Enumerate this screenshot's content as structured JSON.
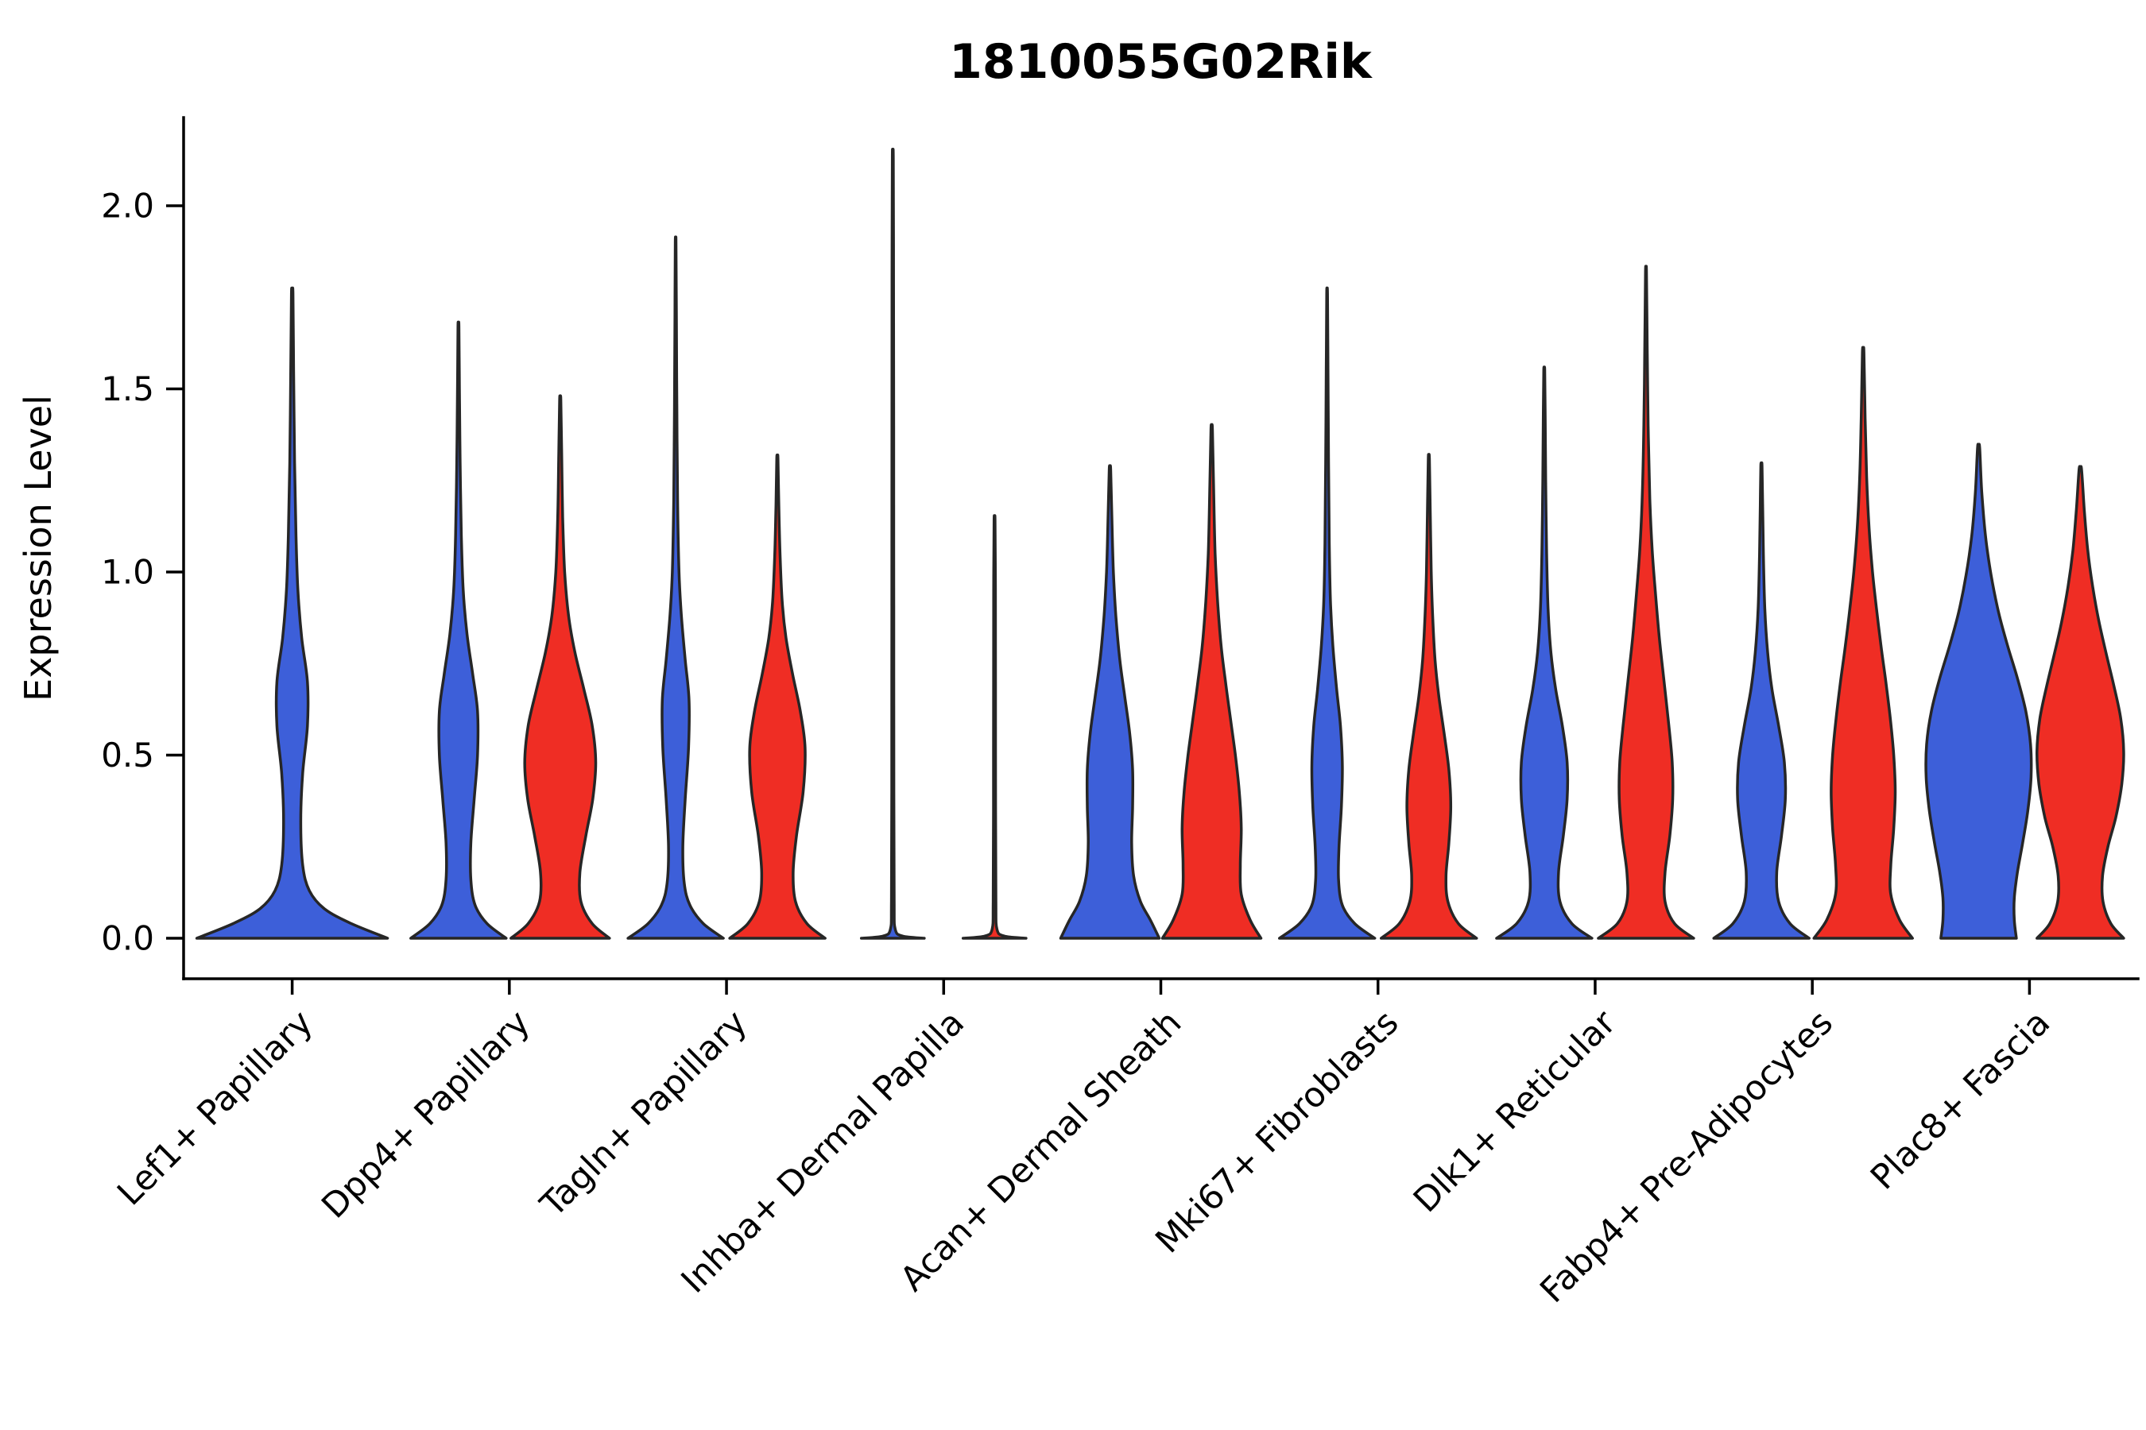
{
  "chart_data": {
    "type": "violin",
    "title": "1810055G02Rik",
    "xlabel": "",
    "ylabel": "Expression Level",
    "ylim": [
      -0.1,
      2.25
    ],
    "yticks": [
      0,
      0.5,
      1,
      1.5,
      2
    ],
    "ytick_labels": [
      "0.0",
      "0.5",
      "1.0",
      "1.5",
      "2.0"
    ],
    "grid": false,
    "legend": "none",
    "colors": {
      "blue": "#3D5FD9",
      "red": "#EF2D24",
      "outline": "#262626"
    },
    "categories": [
      "Lef1+ Papillary",
      "Dpp4+ Papillary",
      "Tagln+ Papillary",
      "Inhba+ Dermal Papilla",
      "Acan+ Dermal Sheath",
      "Mki67+ Fibroblasts",
      "Dlk1+ Reticular",
      "Fabp4+ Pre-Adipocytes",
      "Plac8+ Fascia"
    ],
    "series": [
      {
        "name": "blue",
        "color": "#3D5FD9",
        "max_expression": [
          1.76,
          1.67,
          1.9,
          2.13,
          1.28,
          1.76,
          1.55,
          1.29,
          1.34
        ]
      },
      {
        "name": "red",
        "color": "#EF2D24",
        "max_expression": [
          null,
          1.47,
          1.31,
          1.14,
          1.39,
          1.31,
          1.82,
          1.6,
          1.28
        ]
      }
    ],
    "violins": [
      {
        "category": 0,
        "color": "blue",
        "slot": "center",
        "max": 1.76,
        "half_width": 120,
        "profile": [
          [
            0,
            1.0
          ],
          [
            0.04,
            0.62
          ],
          [
            0.08,
            0.34
          ],
          [
            0.13,
            0.18
          ],
          [
            0.2,
            0.11
          ],
          [
            0.32,
            0.09
          ],
          [
            0.45,
            0.11
          ],
          [
            0.58,
            0.16
          ],
          [
            0.7,
            0.16
          ],
          [
            0.82,
            0.1
          ],
          [
            0.95,
            0.06
          ],
          [
            1.1,
            0.04
          ],
          [
            1.3,
            0.025
          ],
          [
            1.55,
            0.015
          ],
          [
            1.76,
            0.008
          ]
        ]
      },
      {
        "category": 1,
        "color": "blue",
        "slot": "left",
        "max": 1.67,
        "half_width": 60,
        "profile": [
          [
            0,
            1.0
          ],
          [
            0.04,
            0.6
          ],
          [
            0.09,
            0.35
          ],
          [
            0.16,
            0.26
          ],
          [
            0.26,
            0.26
          ],
          [
            0.38,
            0.33
          ],
          [
            0.5,
            0.4
          ],
          [
            0.62,
            0.4
          ],
          [
            0.72,
            0.3
          ],
          [
            0.83,
            0.18
          ],
          [
            0.95,
            0.1
          ],
          [
            1.1,
            0.06
          ],
          [
            1.3,
            0.035
          ],
          [
            1.5,
            0.02
          ],
          [
            1.67,
            0.01
          ]
        ]
      },
      {
        "category": 1,
        "color": "red",
        "slot": "right",
        "max": 1.47,
        "half_width": 62,
        "profile": [
          [
            0,
            1.0
          ],
          [
            0.04,
            0.65
          ],
          [
            0.1,
            0.42
          ],
          [
            0.18,
            0.4
          ],
          [
            0.28,
            0.52
          ],
          [
            0.38,
            0.66
          ],
          [
            0.48,
            0.72
          ],
          [
            0.58,
            0.65
          ],
          [
            0.68,
            0.48
          ],
          [
            0.78,
            0.3
          ],
          [
            0.88,
            0.17
          ],
          [
            1.0,
            0.09
          ],
          [
            1.15,
            0.05
          ],
          [
            1.32,
            0.03
          ],
          [
            1.47,
            0.012
          ]
        ]
      },
      {
        "category": 2,
        "color": "blue",
        "slot": "left",
        "max": 1.9,
        "half_width": 60,
        "profile": [
          [
            0,
            1.0
          ],
          [
            0.04,
            0.58
          ],
          [
            0.09,
            0.3
          ],
          [
            0.15,
            0.18
          ],
          [
            0.25,
            0.15
          ],
          [
            0.38,
            0.2
          ],
          [
            0.52,
            0.27
          ],
          [
            0.65,
            0.28
          ],
          [
            0.76,
            0.2
          ],
          [
            0.88,
            0.12
          ],
          [
            1.0,
            0.07
          ],
          [
            1.2,
            0.04
          ],
          [
            1.45,
            0.025
          ],
          [
            1.7,
            0.015
          ],
          [
            1.9,
            0.008
          ]
        ]
      },
      {
        "category": 2,
        "color": "red",
        "slot": "right",
        "max": 1.31,
        "half_width": 60,
        "profile": [
          [
            0,
            1.0
          ],
          [
            0.04,
            0.62
          ],
          [
            0.1,
            0.38
          ],
          [
            0.18,
            0.33
          ],
          [
            0.28,
            0.4
          ],
          [
            0.4,
            0.54
          ],
          [
            0.52,
            0.58
          ],
          [
            0.62,
            0.48
          ],
          [
            0.72,
            0.32
          ],
          [
            0.82,
            0.18
          ],
          [
            0.92,
            0.1
          ],
          [
            1.05,
            0.055
          ],
          [
            1.18,
            0.03
          ],
          [
            1.31,
            0.012
          ]
        ]
      },
      {
        "category": 3,
        "color": "blue",
        "slot": "left",
        "max": 2.13,
        "half_width": 60,
        "profile": [
          [
            0,
            0.66
          ],
          [
            0.006,
            0.2
          ],
          [
            0.025,
            0.05
          ],
          [
            0.1,
            0.028
          ],
          [
            0.4,
            0.022
          ],
          [
            0.9,
            0.02
          ],
          [
            1.4,
            0.018
          ],
          [
            1.8,
            0.016
          ],
          [
            2.13,
            0.01
          ]
        ]
      },
      {
        "category": 3,
        "color": "red",
        "slot": "right",
        "max": 1.14,
        "half_width": 60,
        "profile": [
          [
            0,
            0.66
          ],
          [
            0.006,
            0.2
          ],
          [
            0.025,
            0.05
          ],
          [
            0.1,
            0.028
          ],
          [
            0.35,
            0.022
          ],
          [
            0.7,
            0.02
          ],
          [
            0.95,
            0.018
          ],
          [
            1.14,
            0.01
          ]
        ]
      },
      {
        "category": 4,
        "color": "blue",
        "slot": "left",
        "max": 1.28,
        "half_width": 62,
        "profile": [
          [
            0,
            1.0
          ],
          [
            0.05,
            0.82
          ],
          [
            0.1,
            0.62
          ],
          [
            0.17,
            0.48
          ],
          [
            0.26,
            0.44
          ],
          [
            0.36,
            0.46
          ],
          [
            0.46,
            0.46
          ],
          [
            0.56,
            0.4
          ],
          [
            0.66,
            0.3
          ],
          [
            0.76,
            0.2
          ],
          [
            0.88,
            0.12
          ],
          [
            1.0,
            0.07
          ],
          [
            1.14,
            0.04
          ],
          [
            1.28,
            0.015
          ]
        ]
      },
      {
        "category": 4,
        "color": "red",
        "slot": "right",
        "max": 1.39,
        "half_width": 62,
        "profile": [
          [
            0,
            1.0
          ],
          [
            0.05,
            0.78
          ],
          [
            0.12,
            0.6
          ],
          [
            0.2,
            0.58
          ],
          [
            0.3,
            0.6
          ],
          [
            0.4,
            0.56
          ],
          [
            0.5,
            0.48
          ],
          [
            0.6,
            0.38
          ],
          [
            0.7,
            0.28
          ],
          [
            0.8,
            0.19
          ],
          [
            0.92,
            0.12
          ],
          [
            1.05,
            0.07
          ],
          [
            1.22,
            0.04
          ],
          [
            1.39,
            0.015
          ]
        ]
      },
      {
        "category": 5,
        "color": "blue",
        "slot": "left",
        "max": 1.76,
        "half_width": 60,
        "profile": [
          [
            0,
            1.0
          ],
          [
            0.04,
            0.58
          ],
          [
            0.09,
            0.32
          ],
          [
            0.16,
            0.24
          ],
          [
            0.25,
            0.25
          ],
          [
            0.36,
            0.3
          ],
          [
            0.47,
            0.32
          ],
          [
            0.58,
            0.28
          ],
          [
            0.68,
            0.2
          ],
          [
            0.8,
            0.12
          ],
          [
            0.92,
            0.07
          ],
          [
            1.08,
            0.045
          ],
          [
            1.3,
            0.03
          ],
          [
            1.55,
            0.018
          ],
          [
            1.76,
            0.008
          ]
        ]
      },
      {
        "category": 5,
        "color": "red",
        "slot": "right",
        "max": 1.31,
        "half_width": 60,
        "profile": [
          [
            0,
            1.0
          ],
          [
            0.04,
            0.62
          ],
          [
            0.1,
            0.4
          ],
          [
            0.17,
            0.36
          ],
          [
            0.26,
            0.42
          ],
          [
            0.36,
            0.46
          ],
          [
            0.46,
            0.42
          ],
          [
            0.56,
            0.32
          ],
          [
            0.66,
            0.21
          ],
          [
            0.76,
            0.13
          ],
          [
            0.88,
            0.08
          ],
          [
            1.0,
            0.05
          ],
          [
            1.16,
            0.03
          ],
          [
            1.31,
            0.012
          ]
        ]
      },
      {
        "category": 6,
        "color": "blue",
        "slot": "left",
        "max": 1.55,
        "half_width": 60,
        "profile": [
          [
            0,
            1.0
          ],
          [
            0.04,
            0.58
          ],
          [
            0.1,
            0.33
          ],
          [
            0.18,
            0.3
          ],
          [
            0.28,
            0.4
          ],
          [
            0.38,
            0.48
          ],
          [
            0.48,
            0.48
          ],
          [
            0.58,
            0.38
          ],
          [
            0.68,
            0.24
          ],
          [
            0.78,
            0.14
          ],
          [
            0.9,
            0.08
          ],
          [
            1.05,
            0.05
          ],
          [
            1.25,
            0.03
          ],
          [
            1.42,
            0.02
          ],
          [
            1.55,
            0.01
          ]
        ]
      },
      {
        "category": 6,
        "color": "red",
        "slot": "right",
        "max": 1.82,
        "half_width": 60,
        "profile": [
          [
            0,
            1.0
          ],
          [
            0.04,
            0.6
          ],
          [
            0.1,
            0.4
          ],
          [
            0.18,
            0.4
          ],
          [
            0.28,
            0.5
          ],
          [
            0.38,
            0.56
          ],
          [
            0.48,
            0.55
          ],
          [
            0.58,
            0.48
          ],
          [
            0.7,
            0.38
          ],
          [
            0.82,
            0.28
          ],
          [
            0.94,
            0.2
          ],
          [
            1.06,
            0.13
          ],
          [
            1.2,
            0.08
          ],
          [
            1.4,
            0.045
          ],
          [
            1.62,
            0.025
          ],
          [
            1.82,
            0.01
          ]
        ]
      },
      {
        "category": 7,
        "color": "blue",
        "slot": "left",
        "max": 1.29,
        "half_width": 60,
        "profile": [
          [
            0,
            1.0
          ],
          [
            0.04,
            0.6
          ],
          [
            0.1,
            0.36
          ],
          [
            0.18,
            0.32
          ],
          [
            0.28,
            0.42
          ],
          [
            0.38,
            0.5
          ],
          [
            0.48,
            0.48
          ],
          [
            0.58,
            0.36
          ],
          [
            0.68,
            0.22
          ],
          [
            0.78,
            0.13
          ],
          [
            0.9,
            0.07
          ],
          [
            1.05,
            0.04
          ],
          [
            1.18,
            0.025
          ],
          [
            1.29,
            0.012
          ]
        ]
      },
      {
        "category": 7,
        "color": "red",
        "slot": "right",
        "max": 1.6,
        "half_width": 62,
        "profile": [
          [
            0,
            1.0
          ],
          [
            0.05,
            0.74
          ],
          [
            0.12,
            0.56
          ],
          [
            0.2,
            0.56
          ],
          [
            0.3,
            0.62
          ],
          [
            0.4,
            0.65
          ],
          [
            0.5,
            0.62
          ],
          [
            0.6,
            0.55
          ],
          [
            0.7,
            0.46
          ],
          [
            0.8,
            0.36
          ],
          [
            0.9,
            0.27
          ],
          [
            1.0,
            0.19
          ],
          [
            1.12,
            0.12
          ],
          [
            1.26,
            0.07
          ],
          [
            1.42,
            0.04
          ],
          [
            1.6,
            0.015
          ]
        ]
      },
      {
        "category": 8,
        "color": "blue",
        "slot": "left",
        "max": 1.34,
        "half_width": 66,
        "profile": [
          [
            0,
            0.72
          ],
          [
            0.05,
            0.68
          ],
          [
            0.11,
            0.68
          ],
          [
            0.18,
            0.74
          ],
          [
            0.26,
            0.84
          ],
          [
            0.35,
            0.94
          ],
          [
            0.44,
            1.0
          ],
          [
            0.53,
            0.99
          ],
          [
            0.62,
            0.9
          ],
          [
            0.71,
            0.74
          ],
          [
            0.8,
            0.55
          ],
          [
            0.89,
            0.38
          ],
          [
            0.99,
            0.24
          ],
          [
            1.1,
            0.13
          ],
          [
            1.22,
            0.06
          ],
          [
            1.34,
            0.02
          ]
        ]
      },
      {
        "category": 8,
        "color": "red",
        "slot": "right",
        "max": 1.28,
        "half_width": 62,
        "profile": [
          [
            0,
            0.88
          ],
          [
            0.04,
            0.62
          ],
          [
            0.1,
            0.46
          ],
          [
            0.17,
            0.45
          ],
          [
            0.25,
            0.56
          ],
          [
            0.33,
            0.72
          ],
          [
            0.42,
            0.84
          ],
          [
            0.51,
            0.88
          ],
          [
            0.6,
            0.82
          ],
          [
            0.69,
            0.68
          ],
          [
            0.78,
            0.52
          ],
          [
            0.87,
            0.37
          ],
          [
            0.96,
            0.25
          ],
          [
            1.06,
            0.15
          ],
          [
            1.17,
            0.08
          ],
          [
            1.28,
            0.025
          ]
        ]
      }
    ]
  }
}
